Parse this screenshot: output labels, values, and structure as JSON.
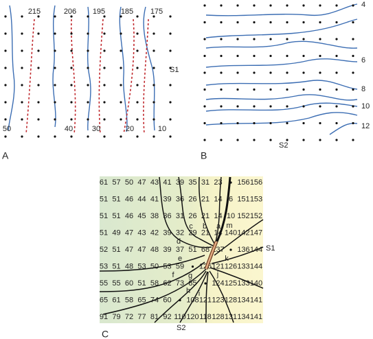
{
  "panels": {
    "a": {
      "label": "A",
      "top_labels": [
        215,
        206,
        195,
        185,
        175
      ],
      "bottom_labels": [
        50,
        40,
        30,
        20,
        10
      ],
      "side_label": "S1"
    },
    "b": {
      "label": "B",
      "contour_labels": [
        4,
        6,
        8,
        10,
        12
      ],
      "bottom_label": "S2"
    },
    "c": {
      "label": "C",
      "side_label": "S1",
      "bottom_label": "S2",
      "grid": [
        [
          61,
          57,
          50,
          47,
          43,
          41,
          39,
          35,
          31,
          23,
          null,
          156,
          156
        ],
        [
          51,
          51,
          46,
          44,
          41,
          39,
          36,
          26,
          21,
          14,
          6,
          151,
          153
        ],
        [
          51,
          51,
          46,
          45,
          38,
          36,
          31,
          26,
          21,
          14,
          10,
          152,
          152
        ],
        [
          51,
          49,
          47,
          43,
          42,
          39,
          32,
          29,
          21,
          14,
          140,
          142,
          147
        ],
        [
          52,
          51,
          47,
          47,
          48,
          39,
          37,
          51,
          68,
          137,
          null,
          136,
          144
        ],
        [
          53,
          51,
          48,
          53,
          50,
          53,
          59,
          null,
          126,
          121,
          126,
          133,
          144
        ],
        [
          55,
          55,
          60,
          51,
          58,
          62,
          73,
          85,
          null,
          124,
          125,
          133,
          140
        ],
        [
          65,
          61,
          58,
          65,
          74,
          60,
          null,
          108,
          121,
          123,
          128,
          134,
          141
        ],
        [
          91,
          79,
          72,
          77,
          81,
          92,
          110,
          120,
          118,
          128,
          131,
          134,
          141
        ]
      ],
      "letters": [
        "a",
        "b",
        "c",
        "d",
        "e",
        "f",
        "g",
        "h",
        "i",
        "j",
        "k",
        "m"
      ]
    }
  }
}
